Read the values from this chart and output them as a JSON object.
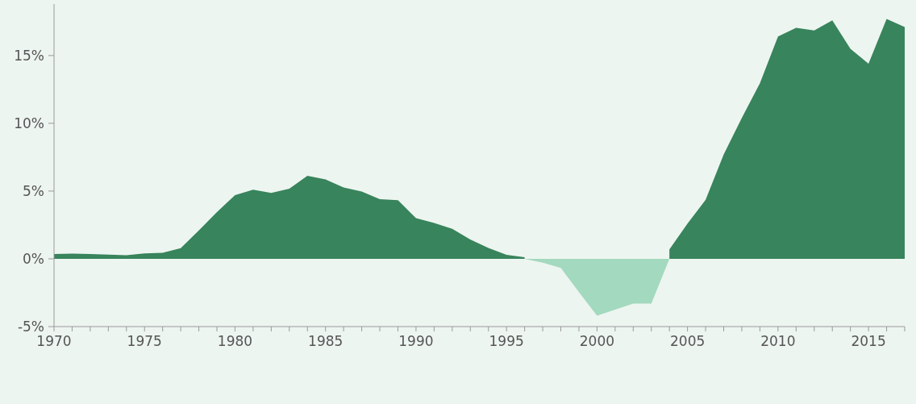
{
  "chart_data": {
    "type": "area",
    "x": [
      1970,
      1971,
      1972,
      1973,
      1974,
      1975,
      1976,
      1977,
      1978,
      1979,
      1980,
      1981,
      1982,
      1983,
      1984,
      1985,
      1986,
      1987,
      1988,
      1989,
      1990,
      1991,
      1992,
      1993,
      1994,
      1995,
      1996,
      1997,
      1998,
      1999,
      2000,
      2001,
      2002,
      2003,
      2004,
      2005,
      2006,
      2007,
      2008,
      2009,
      2010,
      2011,
      2012,
      2013,
      2014,
      2015,
      2016,
      2017
    ],
    "series": [
      {
        "color": "#38845c",
        "values": [
          0.36,
          0.38,
          0.35,
          0.31,
          0.27,
          0.4,
          0.44,
          0.78,
          2.1,
          3.45,
          4.7,
          5.1,
          4.86,
          5.18,
          6.13,
          5.86,
          5.26,
          4.97,
          4.4,
          4.33,
          3.0,
          2.64,
          2.22,
          1.42,
          0.8,
          0.3,
          0.12,
          null,
          null,
          null,
          null,
          null,
          null,
          null,
          0.7,
          2.6,
          4.35,
          7.7,
          10.4,
          12.95,
          16.4,
          17.05,
          16.85,
          17.6,
          15.5,
          14.4,
          17.7,
          17.1
        ]
      },
      {
        "color": "#a3d9bf",
        "values": [
          null,
          null,
          null,
          null,
          null,
          null,
          null,
          null,
          null,
          null,
          null,
          null,
          null,
          null,
          null,
          null,
          null,
          null,
          null,
          null,
          null,
          null,
          null,
          null,
          null,
          null,
          0,
          -0.28,
          -0.67,
          -2.45,
          -4.2,
          -3.75,
          -3.3,
          -3.3,
          0,
          null,
          null,
          null,
          null,
          null,
          null,
          null,
          null,
          null,
          null,
          null,
          null,
          null
        ]
      }
    ],
    "xlim": [
      1970,
      2017
    ],
    "xticks": [
      1970,
      {
        "value": 1971,
        "label": null
      },
      {
        "value": 1972,
        "label": null
      },
      {
        "value": 1973,
        "label": null
      },
      {
        "value": 1974,
        "label": null
      },
      1975,
      {
        "value": 1976,
        "label": null
      },
      {
        "value": 1977,
        "label": null
      },
      {
        "value": 1978,
        "label": null
      },
      {
        "value": 1979,
        "label": null
      },
      1980,
      {
        "value": 1981,
        "label": null
      },
      {
        "value": 1982,
        "label": null
      },
      {
        "value": 1983,
        "label": null
      },
      {
        "value": 1984,
        "label": null
      },
      1985,
      {
        "value": 1986,
        "label": null
      },
      {
        "value": 1987,
        "label": null
      },
      {
        "value": 1988,
        "label": null
      },
      {
        "value": 1989,
        "label": null
      },
      1990,
      {
        "value": 1991,
        "label": null
      },
      {
        "value": 1992,
        "label": null
      },
      {
        "value": 1993,
        "label": null
      },
      {
        "value": 1994,
        "label": null
      },
      1995,
      {
        "value": 1996,
        "label": null
      },
      {
        "value": 1997,
        "label": null
      },
      {
        "value": 1998,
        "label": null
      },
      {
        "value": 1999,
        "label": null
      },
      2000,
      {
        "value": 2001,
        "label": null
      },
      {
        "value": 2002,
        "label": null
      },
      {
        "value": 2003,
        "label": null
      },
      {
        "value": 2004,
        "label": null
      },
      2005,
      {
        "value": 2006,
        "label": null
      },
      {
        "value": 2007,
        "label": null
      },
      {
        "value": 2008,
        "label": null
      },
      {
        "value": 2009,
        "label": null
      },
      2010,
      {
        "value": 2011,
        "label": null
      },
      {
        "value": 2012,
        "label": null
      },
      {
        "value": 2013,
        "label": null
      },
      {
        "value": 2014,
        "label": null
      },
      2015,
      {
        "value": 2016,
        "label": null
      },
      {
        "value": 2017,
        "label": null
      }
    ],
    "ylim": [
      -5,
      18.8
    ],
    "yticks": [
      {
        "value": -5,
        "label": "-5%"
      },
      {
        "value": 0,
        "label": "0%"
      },
      {
        "value": 5,
        "label": "5%"
      },
      {
        "value": 10,
        "label": "10%"
      },
      {
        "value": 15,
        "label": "15%"
      }
    ]
  }
}
